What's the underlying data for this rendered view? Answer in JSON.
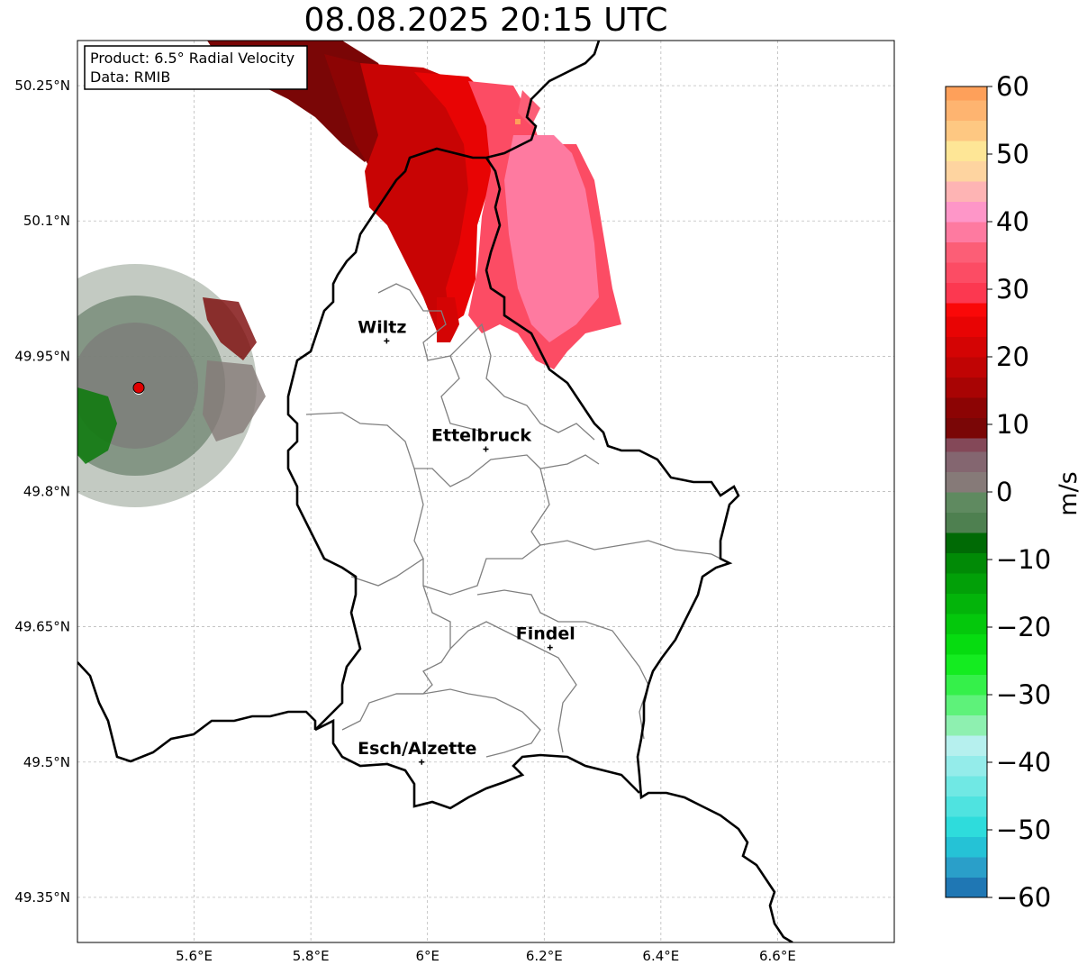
{
  "title": "08.08.2025 20:15 UTC",
  "info_box": {
    "product": "Product: 6.5° Radial Velocity",
    "source": "Data: RMIB"
  },
  "map": {
    "lon_range": [
      5.4,
      6.8
    ],
    "lat_range": [
      49.3,
      50.3
    ],
    "x_ticks": [
      {
        "lon": 5.6,
        "label": "5.6°E"
      },
      {
        "lon": 5.8,
        "label": "5.8°E"
      },
      {
        "lon": 6.0,
        "label": "6°E"
      },
      {
        "lon": 6.2,
        "label": "6.2°E"
      },
      {
        "lon": 6.4,
        "label": "6.4°E"
      },
      {
        "lon": 6.6,
        "label": "6.6°E"
      }
    ],
    "y_ticks": [
      {
        "lat": 50.25,
        "label": "50.25°N"
      },
      {
        "lat": 50.1,
        "label": "50.1°N"
      },
      {
        "lat": 49.95,
        "label": "49.95°N"
      },
      {
        "lat": 49.8,
        "label": "49.8°N"
      },
      {
        "lat": 49.65,
        "label": "49.65°N"
      },
      {
        "lat": 49.5,
        "label": "49.5°N"
      },
      {
        "lat": 49.35,
        "label": "49.35°N"
      }
    ],
    "gridlines": true,
    "cities": [
      {
        "name": "Wiltz",
        "lon": 5.93,
        "lat": 49.967
      },
      {
        "name": "Ettelbruck",
        "lon": 6.1,
        "lat": 49.847
      },
      {
        "name": "Findel",
        "lon": 6.21,
        "lat": 49.627
      },
      {
        "name": "Esch/Alzette",
        "lon": 5.99,
        "lat": 49.5
      }
    ],
    "radar_site": {
      "lon": 5.505,
      "lat": 49.915
    }
  },
  "colorbar": {
    "min": -60,
    "max": 60,
    "unit_label": "m/s",
    "ticks": [
      {
        "value": 60,
        "label": "60"
      },
      {
        "value": 50,
        "label": "50"
      },
      {
        "value": 40,
        "label": "40"
      },
      {
        "value": 30,
        "label": "30"
      },
      {
        "value": 20,
        "label": "20"
      },
      {
        "value": 10,
        "label": "10"
      },
      {
        "value": 0,
        "label": "0"
      },
      {
        "value": -10,
        "label": "−10"
      },
      {
        "value": -20,
        "label": "−20"
      },
      {
        "value": -30,
        "label": "−30"
      },
      {
        "value": -40,
        "label": "−40"
      },
      {
        "value": -50,
        "label": "−50"
      },
      {
        "value": -60,
        "label": "−60"
      }
    ],
    "stops": [
      {
        "from": -60,
        "to": -57,
        "color": "#1f77b4"
      },
      {
        "from": -57,
        "to": -54,
        "color": "#2a9fc9"
      },
      {
        "from": -54,
        "to": -51,
        "color": "#25c2d6"
      },
      {
        "from": -51,
        "to": -48,
        "color": "#2edcdc"
      },
      {
        "from": -48,
        "to": -45,
        "color": "#4fe3e0"
      },
      {
        "from": -45,
        "to": -42,
        "color": "#70e8e4"
      },
      {
        "from": -42,
        "to": -39,
        "color": "#94ecea"
      },
      {
        "from": -39,
        "to": -36,
        "color": "#b6f0ee"
      },
      {
        "from": -36,
        "to": -33,
        "color": "#8ef0b0"
      },
      {
        "from": -33,
        "to": -30,
        "color": "#5ef27a"
      },
      {
        "from": -30,
        "to": -27,
        "color": "#35f04a"
      },
      {
        "from": -27,
        "to": -24,
        "color": "#14ec20"
      },
      {
        "from": -24,
        "to": -21,
        "color": "#06dc10"
      },
      {
        "from": -21,
        "to": -18,
        "color": "#04c80c"
      },
      {
        "from": -18,
        "to": -15,
        "color": "#03b40a"
      },
      {
        "from": -15,
        "to": -12,
        "color": "#02a008"
      },
      {
        "from": -12,
        "to": -9,
        "color": "#018a06"
      },
      {
        "from": -9,
        "to": -6,
        "color": "#006a05"
      },
      {
        "from": -6,
        "to": -3,
        "color": "#4e8050"
      },
      {
        "from": -3,
        "to": 0,
        "color": "#5f8a60"
      },
      {
        "from": 0,
        "to": 3,
        "color": "#867a78"
      },
      {
        "from": 3,
        "to": 6,
        "color": "#846670"
      },
      {
        "from": 6,
        "to": 8,
        "color": "#844858"
      },
      {
        "from": 8,
        "to": 11,
        "color": "#7a0606"
      },
      {
        "from": 11,
        "to": 14,
        "color": "#8c0404"
      },
      {
        "from": 14,
        "to": 17,
        "color": "#a80404"
      },
      {
        "from": 17,
        "to": 20,
        "color": "#c00404"
      },
      {
        "from": 20,
        "to": 23,
        "color": "#d40404"
      },
      {
        "from": 23,
        "to": 26,
        "color": "#e80404"
      },
      {
        "from": 26,
        "to": 28,
        "color": "#fa0808"
      },
      {
        "from": 28,
        "to": 31,
        "color": "#fc3850"
      },
      {
        "from": 31,
        "to": 34,
        "color": "#fc4c64"
      },
      {
        "from": 34,
        "to": 37,
        "color": "#fc5e76"
      },
      {
        "from": 37,
        "to": 40,
        "color": "#fe7aa0"
      },
      {
        "from": 40,
        "to": 43,
        "color": "#fe96c8"
      },
      {
        "from": 43,
        "to": 46,
        "color": "#feb4b4"
      },
      {
        "from": 46,
        "to": 49,
        "color": "#fed4a0"
      },
      {
        "from": 49,
        "to": 52,
        "color": "#fee696"
      },
      {
        "from": 52,
        "to": 55,
        "color": "#fec882"
      },
      {
        "from": 55,
        "to": 58,
        "color": "#feb470"
      },
      {
        "from": 58,
        "to": 60,
        "color": "#fea05a"
      }
    ]
  },
  "colors": {
    "border": "#000000",
    "canton": "#808080",
    "grid": "#b0b0b0",
    "radar_site": "#e00000"
  }
}
